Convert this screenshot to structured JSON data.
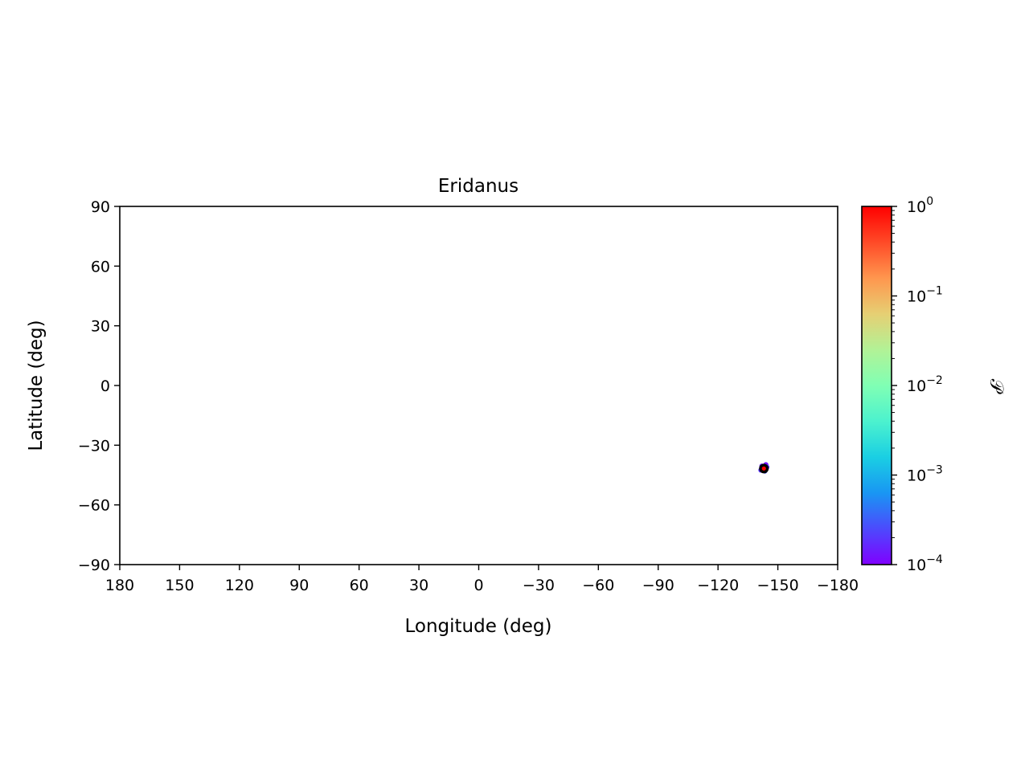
{
  "chart_data": {
    "type": "scatter",
    "title": "Eridanus",
    "xlabel": "Longitude (deg)",
    "ylabel": "Latitude (deg)",
    "xlim": [
      180,
      -180
    ],
    "ylim": [
      -90,
      90
    ],
    "x_ticks": [
      180,
      150,
      120,
      90,
      60,
      30,
      0,
      -30,
      -60,
      -90,
      -120,
      -150,
      -180
    ],
    "x_tick_labels": [
      "180",
      "150",
      "120",
      "90",
      "60",
      "30",
      "0",
      "−30",
      "−60",
      "−90",
      "−120",
      "−150",
      "−180"
    ],
    "y_ticks": [
      90,
      60,
      30,
      0,
      -30,
      -60,
      -90
    ],
    "y_tick_labels": [
      "90",
      "60",
      "30",
      "0",
      "−30",
      "−60",
      "−90"
    ],
    "grid": false,
    "colorbar": {
      "label": "𝒫",
      "scale": "log",
      "range": [
        0.0001,
        1
      ],
      "ticks": [
        {
          "value": 1,
          "base": "10",
          "exp": "0"
        },
        {
          "value": 0.1,
          "base": "10",
          "exp": "−1"
        },
        {
          "value": 0.01,
          "base": "10",
          "exp": "−2"
        },
        {
          "value": 0.001,
          "base": "10",
          "exp": "−3"
        },
        {
          "value": 0.0001,
          "base": "10",
          "exp": "−4"
        }
      ],
      "colormap": [
        "#8000ff",
        "#4c4afd",
        "#1996f3",
        "#1acfe3",
        "#4cf2ce",
        "#80ffb4",
        "#b2f296",
        "#e6cf73",
        "#ff964e",
        "#ff4a27",
        "#ff0000"
      ]
    },
    "points": [
      {
        "lon": -143.0,
        "lat": -41.5,
        "p": 0.0001
      },
      {
        "lon": -144.5,
        "lat": -41.0,
        "p": 0.0002
      },
      {
        "lon": -142.0,
        "lat": -40.5,
        "p": 0.00015
      },
      {
        "lon": -143.5,
        "lat": -43.0,
        "p": 0.0003
      },
      {
        "lon": -141.5,
        "lat": -42.5,
        "p": 0.0002
      },
      {
        "lon": -144.0,
        "lat": -39.8,
        "p": 0.00012
      },
      {
        "lon": -142.5,
        "lat": -42.0,
        "p": 0.002
      },
      {
        "lon": -143.2,
        "lat": -41.6,
        "p": 0.02
      },
      {
        "lon": -142.8,
        "lat": -41.2,
        "p": 0.3
      },
      {
        "lon": -143.0,
        "lat": -41.7,
        "p": 1.0
      }
    ],
    "marker": {
      "lon": -143.0,
      "lat": -41.7
    }
  }
}
